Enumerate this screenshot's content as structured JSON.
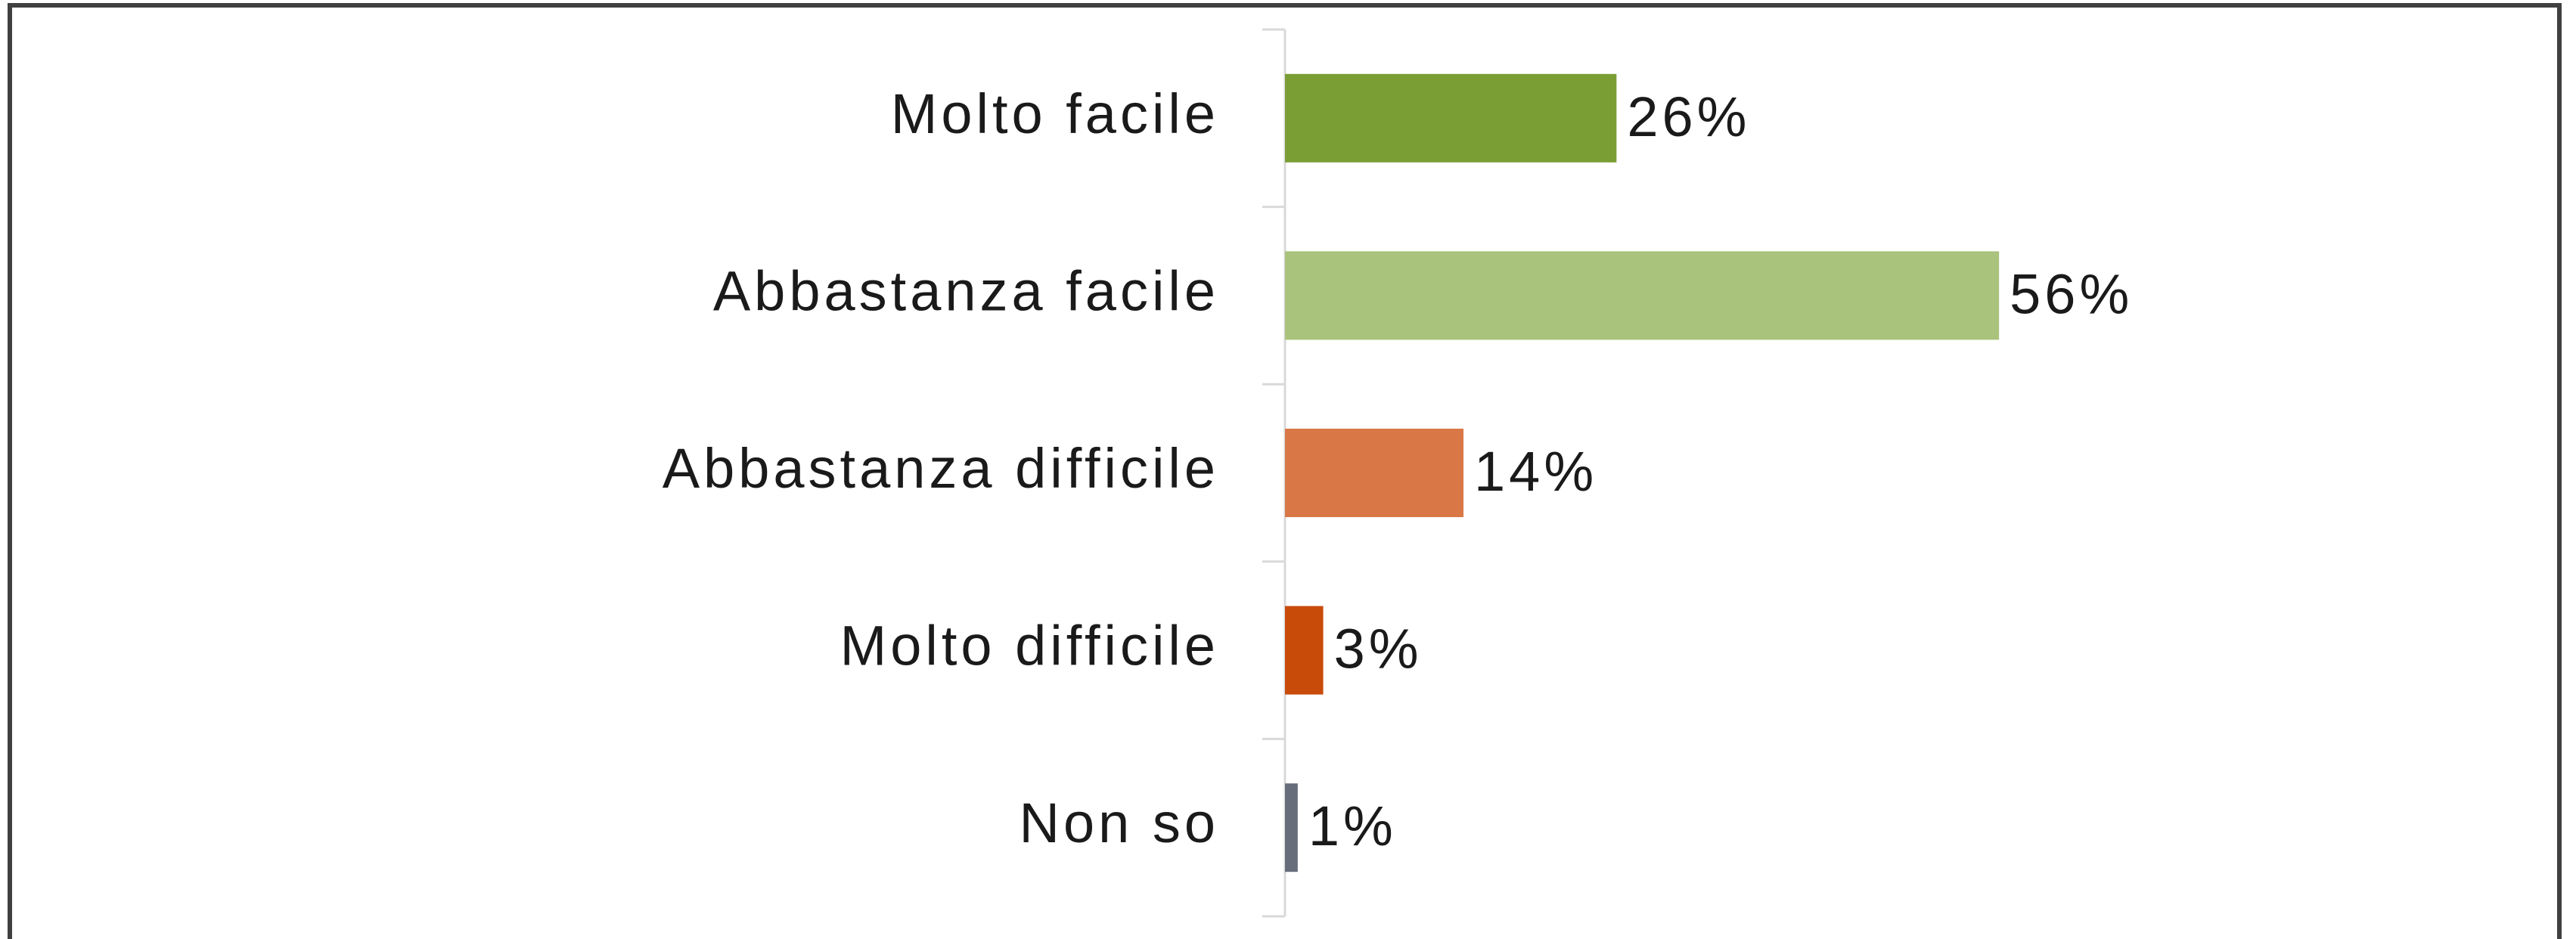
{
  "chart_data": {
    "type": "bar",
    "orientation": "horizontal",
    "categories": [
      "Molto facile",
      "Abbastanza facile",
      "Abbastanza difficile",
      "Molto difficile",
      "Non so"
    ],
    "values": [
      26,
      56,
      14,
      3,
      1
    ],
    "value_labels": [
      "26%",
      "56%",
      "14%",
      "3%",
      "1%"
    ],
    "colors": [
      "#7a9e34",
      "#a9c27c",
      "#d97846",
      "#c84b0a",
      "#676d7a"
    ],
    "xlim": [
      0,
      100
    ]
  }
}
